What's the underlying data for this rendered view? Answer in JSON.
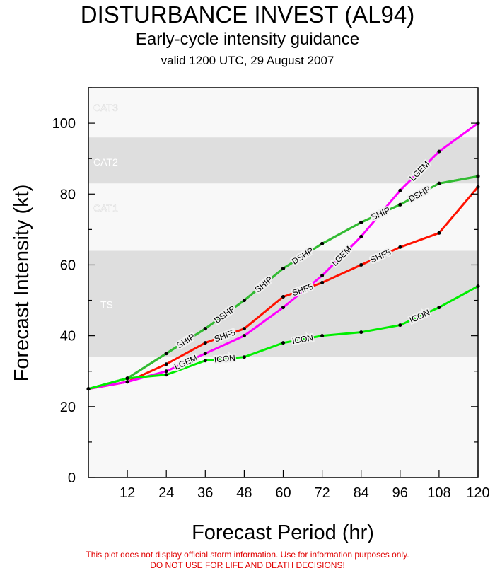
{
  "header": {
    "title": "DISTURBANCE INVEST (AL94)",
    "subtitle": "Early-cycle intensity guidance",
    "valid": "valid 1200 UTC, 29 August 2007"
  },
  "disclaimer": {
    "line1": "This plot does not display official storm information. Use for information purposes only.",
    "line2": "DO NOT USE FOR LIFE AND DEATH DECISIONS!"
  },
  "chart_data": {
    "type": "line",
    "title": "DISTURBANCE INVEST (AL94)",
    "xlabel": "Forecast Period (hr)",
    "ylabel": "Forecast Intensity (kt)",
    "xlim": [
      0,
      120
    ],
    "ylim": [
      0,
      110
    ],
    "xticks": [
      12,
      24,
      36,
      48,
      60,
      72,
      84,
      96,
      108,
      120
    ],
    "yticks": [
      0,
      20,
      40,
      60,
      80,
      100
    ],
    "x": [
      0,
      12,
      24,
      36,
      48,
      60,
      72,
      84,
      96,
      108,
      120
    ],
    "bands": [
      {
        "label": "TS",
        "from": 34,
        "to": 64,
        "color": "#dedede"
      },
      {
        "label": "CAT1",
        "from": 64,
        "to": 83,
        "color": "#f8f8f8"
      },
      {
        "label": "CAT2",
        "from": 83,
        "to": 96,
        "color": "#dedede"
      },
      {
        "label": "CAT3",
        "from": 96,
        "to": 110,
        "color": "#f8f8f8"
      }
    ],
    "series": [
      {
        "name": "SHIP",
        "label": "SHIP",
        "color": "#33bb33",
        "values": [
          25,
          28,
          35,
          42,
          50,
          59,
          66,
          72,
          77,
          83,
          85
        ],
        "label_segments": [
          2,
          4,
          7
        ]
      },
      {
        "name": "DSHP",
        "label": "DSHP",
        "color": "#33bb33",
        "values": [
          25,
          28,
          35,
          42,
          50,
          59,
          66,
          72,
          77,
          83,
          85
        ],
        "label_segments": [
          2,
          4,
          7
        ]
      },
      {
        "name": "SHF5",
        "label": "SHF5",
        "color": "#ff1100",
        "values": [
          25,
          27,
          32,
          38,
          42,
          51,
          55,
          60,
          65,
          69,
          82
        ],
        "label_segments": [
          2,
          5,
          7
        ]
      },
      {
        "name": "LGEM",
        "label": "LGEM",
        "color": "#ff00ff",
        "values": [
          25,
          27,
          30,
          35,
          40,
          48,
          57,
          68,
          81,
          92,
          100
        ],
        "label_segments": [
          2,
          5,
          7
        ]
      },
      {
        "name": "ICON",
        "label": "ICON",
        "color": "#00ee00",
        "values": [
          25,
          28,
          29,
          33,
          34,
          38,
          40,
          41,
          43,
          48,
          54
        ],
        "label_segments": [
          2,
          5,
          8
        ]
      }
    ]
  }
}
